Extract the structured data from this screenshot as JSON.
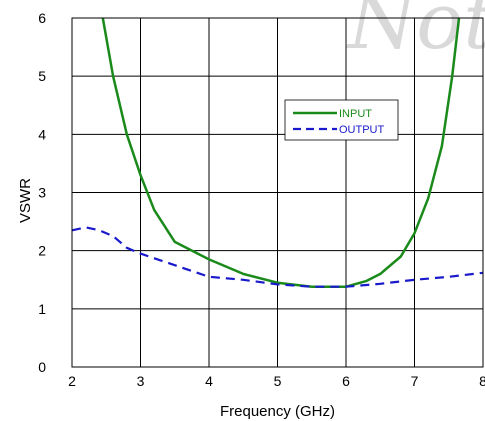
{
  "chart_data": {
    "type": "line",
    "title": "",
    "xlabel": "Frequency (GHz)",
    "ylabel": "VSWR",
    "xlim": [
      2,
      8
    ],
    "ylim": [
      0,
      6
    ],
    "x_ticks": [
      "2",
      "3",
      "4",
      "5",
      "6",
      "7",
      "8"
    ],
    "y_ticks": [
      "0",
      "1",
      "2",
      "3",
      "4",
      "5",
      "6"
    ],
    "grid": true,
    "legend_position": "top-right",
    "watermark_text": "Not",
    "series": [
      {
        "name": "INPUT",
        "color": "#1a8a1a",
        "style": "solid",
        "points": [
          [
            2.45,
            6.0
          ],
          [
            2.6,
            5.0
          ],
          [
            2.8,
            4.0
          ],
          [
            3.0,
            3.3
          ],
          [
            3.2,
            2.7
          ],
          [
            3.5,
            2.15
          ],
          [
            4.0,
            1.85
          ],
          [
            4.5,
            1.6
          ],
          [
            5.0,
            1.45
          ],
          [
            5.5,
            1.38
          ],
          [
            6.0,
            1.38
          ],
          [
            6.3,
            1.48
          ],
          [
            6.5,
            1.6
          ],
          [
            6.8,
            1.9
          ],
          [
            7.0,
            2.3
          ],
          [
            7.2,
            2.9
          ],
          [
            7.4,
            3.8
          ],
          [
            7.55,
            5.0
          ],
          [
            7.65,
            6.0
          ]
        ]
      },
      {
        "name": "OUTPUT",
        "color": "#1a1acc",
        "style": "dashed",
        "points": [
          [
            2.0,
            2.35
          ],
          [
            2.2,
            2.4
          ],
          [
            2.4,
            2.35
          ],
          [
            2.6,
            2.25
          ],
          [
            2.8,
            2.05
          ],
          [
            3.0,
            1.95
          ],
          [
            3.5,
            1.75
          ],
          [
            4.0,
            1.55
          ],
          [
            4.5,
            1.5
          ],
          [
            5.0,
            1.42
          ],
          [
            5.5,
            1.38
          ],
          [
            6.0,
            1.38
          ],
          [
            6.5,
            1.43
          ],
          [
            7.0,
            1.5
          ],
          [
            7.5,
            1.55
          ],
          [
            8.0,
            1.62
          ]
        ]
      }
    ]
  }
}
